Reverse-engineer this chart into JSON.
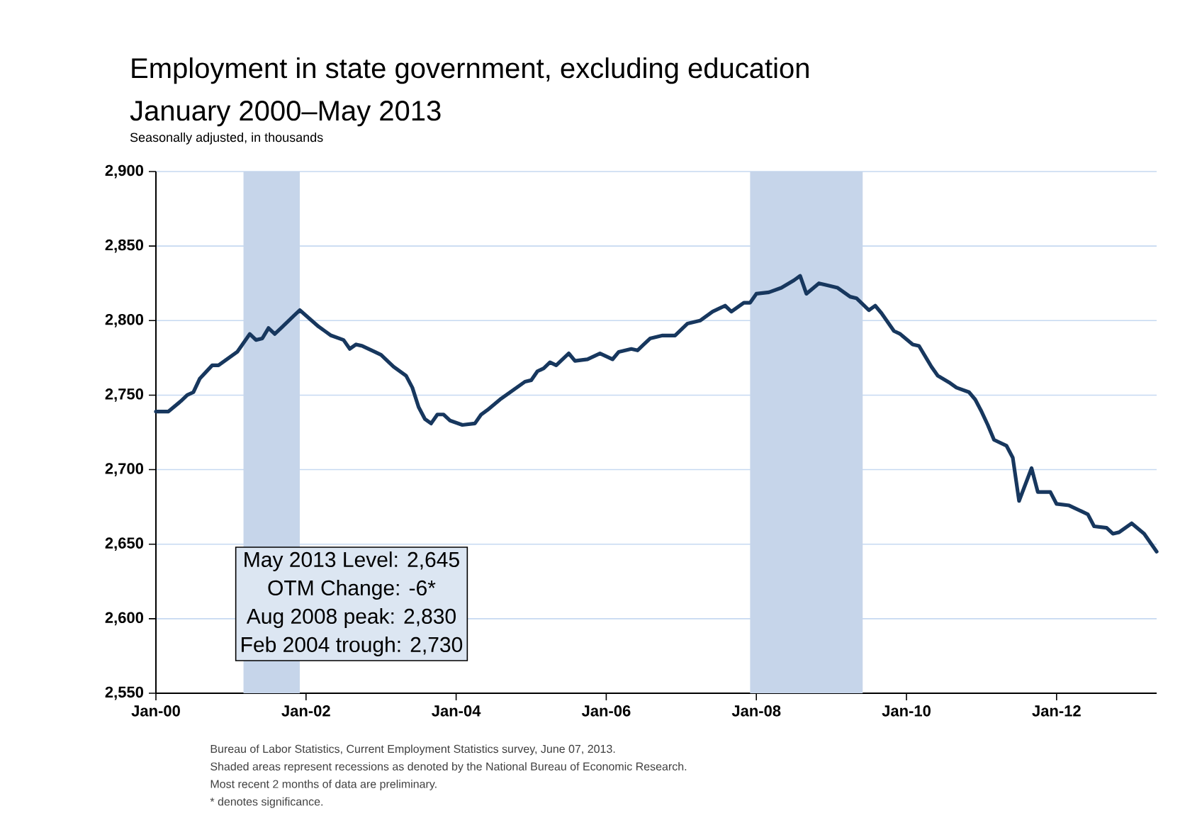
{
  "chart_data": {
    "type": "line",
    "title": "Employment in state government, excluding education",
    "subtitle": "January 2000–May 2013",
    "series": [
      {
        "color": "#17375e",
        "x": [
          "2000-01",
          "2000-03",
          "2000-05",
          "2000-06",
          "2000-07",
          "2000-08",
          "2000-10",
          "2000-11",
          "2001-02",
          "2001-04",
          "2001-05",
          "2001-06",
          "2001-07",
          "2001-08",
          "2001-09",
          "2001-11",
          "2001-12",
          "2002-03",
          "2002-04",
          "2002-05",
          "2002-07",
          "2002-08",
          "2002-09",
          "2002-10",
          "2002-12",
          "2003-01",
          "2003-03",
          "2003-05",
          "2003-06",
          "2003-07",
          "2003-08",
          "2003-09",
          "2003-10",
          "2003-11",
          "2003-12",
          "2004-02",
          "2004-04",
          "2004-05",
          "2004-06",
          "2004-08",
          "2004-09",
          "2004-12",
          "2005-01",
          "2005-02",
          "2005-03",
          "2005-04",
          "2005-05",
          "2005-07",
          "2005-08",
          "2005-10",
          "2005-12",
          "2006-02",
          "2006-03",
          "2006-05",
          "2006-06",
          "2006-07",
          "2006-08",
          "2006-10",
          "2006-12",
          "2007-02",
          "2007-04",
          "2007-06",
          "2007-08",
          "2007-09",
          "2007-11",
          "2007-12",
          "2008-01",
          "2008-03",
          "2008-05",
          "2008-07",
          "2008-08",
          "2008-09",
          "2008-11",
          "2008-12",
          "2009-02",
          "2009-04",
          "2009-05",
          "2009-07",
          "2009-08",
          "2009-09",
          "2009-11",
          "2009-12",
          "2010-02",
          "2010-03",
          "2010-05",
          "2010-06",
          "2010-08",
          "2010-09",
          "2010-11",
          "2010-12",
          "2011-01",
          "2011-02",
          "2011-03",
          "2011-05",
          "2011-06",
          "2011-07",
          "2011-09",
          "2011-10",
          "2011-12",
          "2012-01",
          "2012-03",
          "2012-05",
          "2012-06",
          "2012-07",
          "2012-09",
          "2012-10",
          "2012-11",
          "2013-01",
          "2013-03",
          "2013-05"
        ],
        "values": [
          2739,
          2739,
          2746,
          2750,
          2752,
          2761,
          2770,
          2770,
          2779,
          2791,
          2787,
          2788,
          2795,
          2791,
          2795,
          2803,
          2807,
          2796,
          2793,
          2790,
          2787,
          2781,
          2784,
          2783,
          2779,
          2777,
          2769,
          2763,
          2755,
          2742,
          2734,
          2731,
          2737,
          2737,
          2733,
          2730,
          2731,
          2737,
          2740,
          2747,
          2750,
          2759,
          2760,
          2766,
          2768,
          2772,
          2770,
          2778,
          2773,
          2774,
          2778,
          2774,
          2779,
          2781,
          2780,
          2784,
          2788,
          2790,
          2790,
          2798,
          2800,
          2806,
          2810,
          2806,
          2812,
          2812,
          2818,
          2819,
          2822,
          2827,
          2830,
          2818,
          2825,
          2824,
          2822,
          2816,
          2815,
          2807,
          2810,
          2805,
          2793,
          2791,
          2784,
          2783,
          2769,
          2763,
          2758,
          2755,
          2752,
          2747,
          2739,
          2730,
          2720,
          2716,
          2708,
          2679,
          2701,
          2685,
          2685,
          2677,
          2676,
          2672,
          2670,
          2662,
          2661,
          2657,
          2658,
          2664,
          2657,
          2645
        ]
      }
    ],
    "xlim": [
      "2000-01",
      "2013-05"
    ],
    "xticks": [
      {
        "value": "2000-01",
        "label": "Jan-00"
      },
      {
        "value": "2002-01",
        "label": "Jan-02"
      },
      {
        "value": "2004-01",
        "label": "Jan-04"
      },
      {
        "value": "2006-01",
        "label": "Jan-06"
      },
      {
        "value": "2008-01",
        "label": "Jan-08"
      },
      {
        "value": "2010-01",
        "label": "Jan-10"
      },
      {
        "value": "2012-01",
        "label": "Jan-12"
      }
    ],
    "ylim": [
      2550,
      2900
    ],
    "yticks": [
      {
        "value": 2550,
        "label": "2,550"
      },
      {
        "value": 2600,
        "label": "2,600"
      },
      {
        "value": 2650,
        "label": "2,650"
      },
      {
        "value": 2700,
        "label": "2,700"
      },
      {
        "value": 2750,
        "label": "2,750"
      },
      {
        "value": 2800,
        "label": "2,800"
      },
      {
        "value": 2850,
        "label": "2,850"
      },
      {
        "value": 2900,
        "label": "2,900"
      }
    ],
    "grid": "y",
    "line_style": "solid",
    "bands": [
      {
        "axis": "x",
        "from": "2001-03",
        "to": "2001-12",
        "color": "#c6d5ea"
      },
      {
        "axis": "x",
        "from": "2007-12",
        "to": "2009-06",
        "color": "#c6d5ea"
      }
    ],
    "annotations": [
      "Seasonally adjusted, in thousands",
      "May 2013 Level:  2,645",
      "OTM Change:  -6*",
      "Aug 2008 peak:  2,830",
      "Feb 2004 trough:  2,730",
      "Bureau of Labor Statistics, Current Employment Statistics survey, June 07, 2013.",
      "Shaded areas represent recessions as denoted by the National Bureau of Economic Research.",
      "Most recent 2 months of data are preliminary.",
      "* denotes significance."
    ]
  }
}
